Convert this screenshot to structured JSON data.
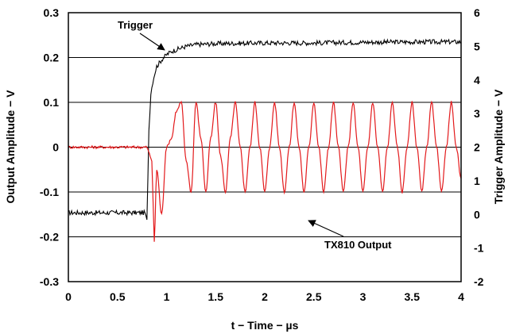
{
  "chart_data": {
    "type": "line",
    "xlabel": "t − Time − µs",
    "ylabel": "Output Amplitude − V",
    "y2label": "Trigger Amplitude − V",
    "xlim": [
      0,
      4
    ],
    "ylim": [
      -0.3,
      0.3
    ],
    "y2lim": [
      -2,
      6
    ],
    "x_ticks": [
      "0",
      "0.5",
      "1",
      "1.5",
      "2",
      "2.5",
      "3",
      "3.5",
      "4"
    ],
    "y_ticks": [
      "0.3",
      "0.2",
      "0.1",
      "0",
      "-0.1",
      "-0.2",
      "-0.3"
    ],
    "y2_ticks": [
      "6",
      "5",
      "4",
      "3",
      "2",
      "1",
      "0",
      "-1",
      "-2"
    ],
    "grid": "horizontal",
    "series": [
      {
        "name": "Trigger",
        "axis": "right",
        "color": "#000000",
        "x": [
          0,
          0.78,
          0.8,
          0.82,
          0.84,
          0.86,
          0.88,
          0.9,
          0.95,
          1.0,
          1.05,
          1.1,
          1.2,
          1.3,
          1.5,
          2.0,
          2.5,
          3.0,
          3.5,
          4.0
        ],
        "y": [
          0.05,
          0.05,
          -0.2,
          2.5,
          3.6,
          3.95,
          4.2,
          4.4,
          4.6,
          4.75,
          4.85,
          4.9,
          5.0,
          5.05,
          5.08,
          5.1,
          5.1,
          5.12,
          5.13,
          5.13
        ]
      },
      {
        "name": "TX810 Output",
        "axis": "left",
        "color": "#e31a1c",
        "x": [
          0,
          0.8,
          0.85,
          0.875,
          0.9,
          0.95,
          1.0,
          1.05,
          1.1,
          1.15,
          1.2,
          1.25,
          1.3,
          1.35,
          1.4,
          1.45,
          1.5,
          1.55,
          1.6,
          1.65,
          1.7,
          1.75,
          1.8,
          1.85,
          1.9,
          1.95,
          2.0,
          2.05,
          2.1,
          2.15,
          2.2,
          2.25,
          2.3,
          2.35,
          2.4,
          2.45,
          2.5,
          2.55,
          2.6,
          2.65,
          2.7,
          2.75,
          2.8,
          2.85,
          2.9,
          2.95,
          3.0,
          3.05,
          3.1,
          3.15,
          3.2,
          3.25,
          3.3,
          3.35,
          3.4,
          3.45,
          3.5,
          3.55,
          3.6,
          3.65,
          3.7,
          3.75,
          3.8,
          3.85,
          3.9,
          3.95,
          4.0
        ],
        "y": [
          0.0,
          0.0,
          -0.03,
          -0.21,
          -0.05,
          -0.15,
          0.0,
          0.02,
          0.08,
          0.1,
          -0.03,
          -0.1,
          0.1,
          0.02,
          -0.1,
          0.02,
          0.1,
          -0.02,
          -0.1,
          0.02,
          0.1,
          0.0,
          -0.1,
          0.0,
          0.1,
          0.0,
          -0.1,
          0.0,
          0.1,
          0.0,
          -0.1,
          0.0,
          0.1,
          0.0,
          -0.1,
          0.0,
          0.1,
          0.0,
          -0.1,
          0.0,
          0.1,
          0.0,
          -0.1,
          0.0,
          0.1,
          0.0,
          -0.1,
          0.0,
          0.1,
          0.0,
          -0.1,
          0.0,
          0.1,
          0.0,
          -0.1,
          0.0,
          0.1,
          0.0,
          -0.1,
          0.0,
          0.1,
          0.0,
          -0.1,
          0.0,
          0.1,
          0.0,
          -0.07
        ]
      }
    ],
    "annotations": [
      {
        "text": "Trigger",
        "points_to": {
          "x": 0.95,
          "y_right": 4.5
        }
      },
      {
        "text": "TX810 Output",
        "points_to": {
          "x": 2.45,
          "y_left": -0.1
        }
      }
    ]
  }
}
